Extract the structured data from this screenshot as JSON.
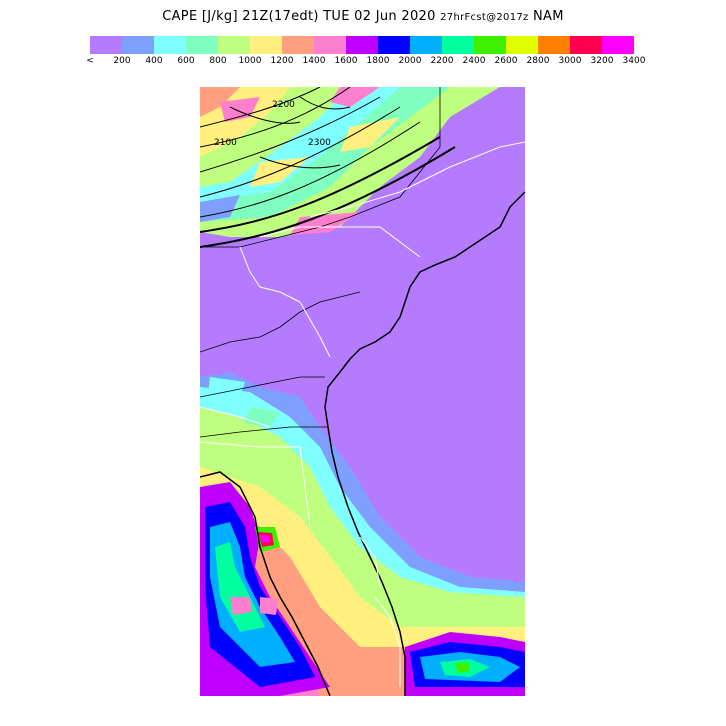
{
  "title": {
    "main": "CAPE [J/kg] 21Z(17edt) TUE 02 Jun 2020",
    "forecast": "27hrFcst@2017z",
    "model": "NAM"
  },
  "colorbar": {
    "labels": [
      "<",
      "200",
      "400",
      "600",
      "800",
      "1000",
      "1200",
      "1400",
      "1600",
      "1800",
      "2000",
      "2200",
      "2400",
      "2600",
      "2800",
      "3000",
      "3200",
      "3400"
    ],
    "colors": [
      "#b57bff",
      "#7f9fff",
      "#7fffff",
      "#7fffbf",
      "#bfff7f",
      "#ffef7f",
      "#ff9f7f",
      "#ff7fcf",
      "#bf00ff",
      "#0000ff",
      "#00afff",
      "#00ff9f",
      "#3fef00",
      "#dfff00",
      "#ff7f00",
      "#ff0050",
      "#ff00ff"
    ]
  },
  "map": {
    "contour_labels": [
      "2100",
      "2200",
      "2300"
    ],
    "background_color": "#b57bff"
  }
}
